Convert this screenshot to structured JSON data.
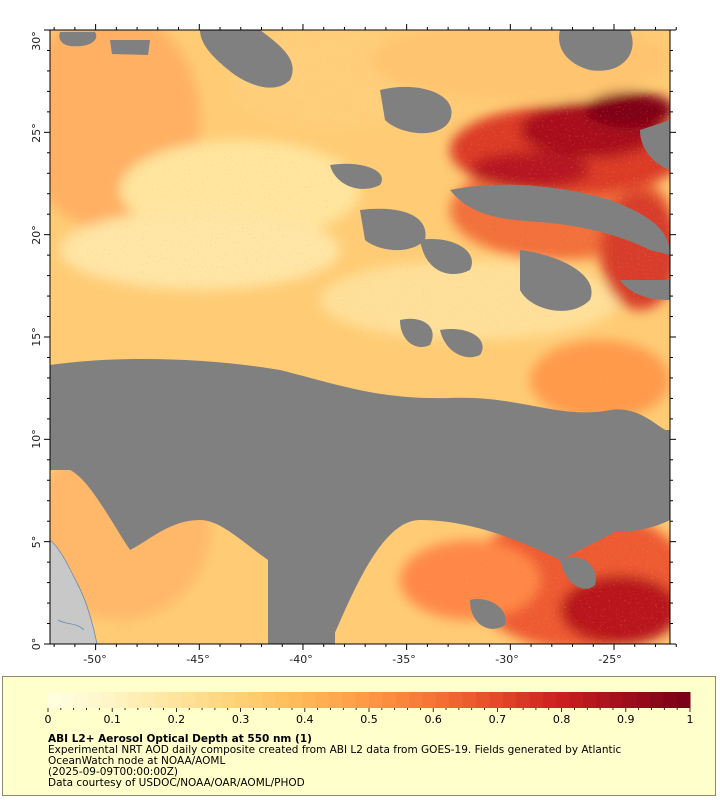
{
  "map": {
    "lat_labels": [
      "30°",
      "25°",
      "20°",
      "15°",
      "10°",
      "5°",
      "0°"
    ],
    "lon_labels": [
      "-50°",
      "-45°",
      "-40°",
      "-35°",
      "-30°",
      "-25°"
    ],
    "lat_range": [
      0,
      30
    ],
    "lon_range": [
      -52.2,
      -22.3
    ],
    "colors": {
      "no_data": "#808080",
      "land": "#c8c8c8",
      "frame": "#000000"
    }
  },
  "legend": {
    "title": "ABI L2+ Aerosol Optical Depth at 550 nm (1)",
    "line1": "Experimental NRT AOD daily composite created from ABI L2 data from GOES-19. Fields generated by Atlantic",
    "line2": "OceanWatch node at NOAA/AOML",
    "line3": "(2025-09-09T00:00:00Z)",
    "line4": "Data courtesy of USDOC/NOAA/OAR/AOML/PHOD",
    "ticks": [
      "0",
      "0.1",
      "0.2",
      "0.3",
      "0.4",
      "0.5",
      "0.6",
      "0.7",
      "0.8",
      "0.9",
      "1"
    ],
    "range": [
      0,
      1
    ],
    "colormap": [
      "#ffffe0",
      "#fff3c2",
      "#ffe39a",
      "#ffd072",
      "#ffb655",
      "#ff9844",
      "#f67436",
      "#e54b2a",
      "#cc2120",
      "#a30f1c",
      "#7a0118"
    ]
  },
  "chart_data": {
    "type": "heatmap",
    "title": "ABI L2+ Aerosol Optical Depth at 550 nm (1)",
    "x_axis": {
      "ticks": [
        -50,
        -45,
        -40,
        -35,
        -30,
        -25
      ],
      "range": [
        -52.2,
        -22.3
      ]
    },
    "y_axis": {
      "ticks": [
        0,
        5,
        10,
        15,
        20,
        25,
        30
      ],
      "range": [
        0,
        30
      ]
    },
    "colorbar": {
      "range": [
        0,
        1
      ],
      "ticks": [
        0,
        0.1,
        0.2,
        0.3,
        0.4,
        0.5,
        0.6,
        0.7,
        0.8,
        0.9,
        1
      ]
    }
  }
}
